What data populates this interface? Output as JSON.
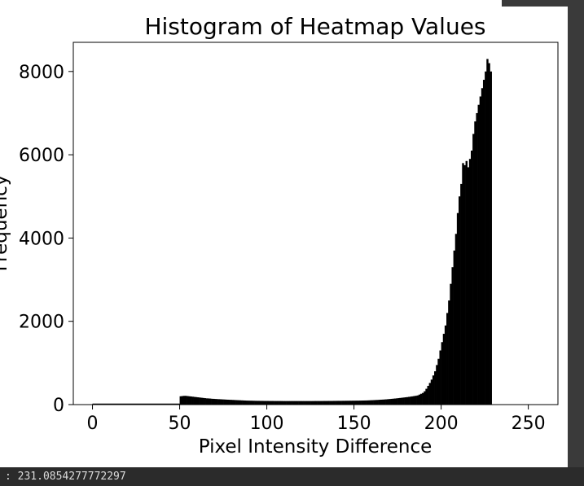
{
  "status_bar": {
    "text": ": 231.0854277772297"
  },
  "colors": {
    "bars": "#000000",
    "background": "#ffffff",
    "frame": "#3a3a3a",
    "status_bar": "#2b2b2b"
  },
  "chart_data": {
    "type": "bar",
    "title": "Histogram of Heatmap Values",
    "xlabel": "Pixel Intensity Difference",
    "ylabel": "Frequency",
    "xlim": [
      -11,
      267
    ],
    "ylim": [
      0,
      8700
    ],
    "xticks": [
      0,
      50,
      100,
      150,
      200,
      250
    ],
    "yticks": [
      0,
      2000,
      4000,
      6000,
      8000
    ],
    "grid": false,
    "bin_width": 1,
    "bin_start": 50,
    "values": [
      200,
      205,
      210,
      210,
      205,
      200,
      195,
      190,
      185,
      180,
      175,
      170,
      165,
      160,
      155,
      150,
      148,
      145,
      140,
      138,
      135,
      132,
      130,
      128,
      125,
      123,
      120,
      118,
      116,
      114,
      112,
      110,
      108,
      106,
      104,
      102,
      100,
      98,
      96,
      95,
      94,
      93,
      92,
      91,
      90,
      90,
      89,
      89,
      88,
      88,
      88,
      87,
      87,
      87,
      86,
      86,
      86,
      86,
      86,
      85,
      85,
      85,
      85,
      85,
      85,
      85,
      85,
      85,
      85,
      85,
      85,
      85,
      85,
      85,
      85,
      85,
      85,
      86,
      86,
      86,
      86,
      86,
      87,
      87,
      87,
      88,
      88,
      88,
      89,
      89,
      90,
      90,
      90,
      91,
      91,
      92,
      92,
      93,
      93,
      94,
      94,
      95,
      95,
      96,
      97,
      98,
      99,
      100,
      102,
      104,
      106,
      108,
      110,
      112,
      115,
      118,
      120,
      123,
      126,
      130,
      134,
      138,
      142,
      146,
      150,
      155,
      160,
      165,
      170,
      175,
      180,
      186,
      192,
      198,
      205,
      212,
      220,
      240,
      260,
      280,
      320,
      380,
      450,
      520,
      600,
      700,
      800,
      950,
      1100,
      1300,
      1500,
      1700,
      1900,
      2200,
      2500,
      2900,
      3300,
      3700,
      4100,
      4600,
      5000,
      5300,
      5800,
      5750,
      5850,
      5700,
      5900,
      6100,
      6500,
      6800,
      7000,
      7200,
      7400,
      7600,
      7800,
      8000,
      8300,
      8200,
      8000
    ]
  }
}
